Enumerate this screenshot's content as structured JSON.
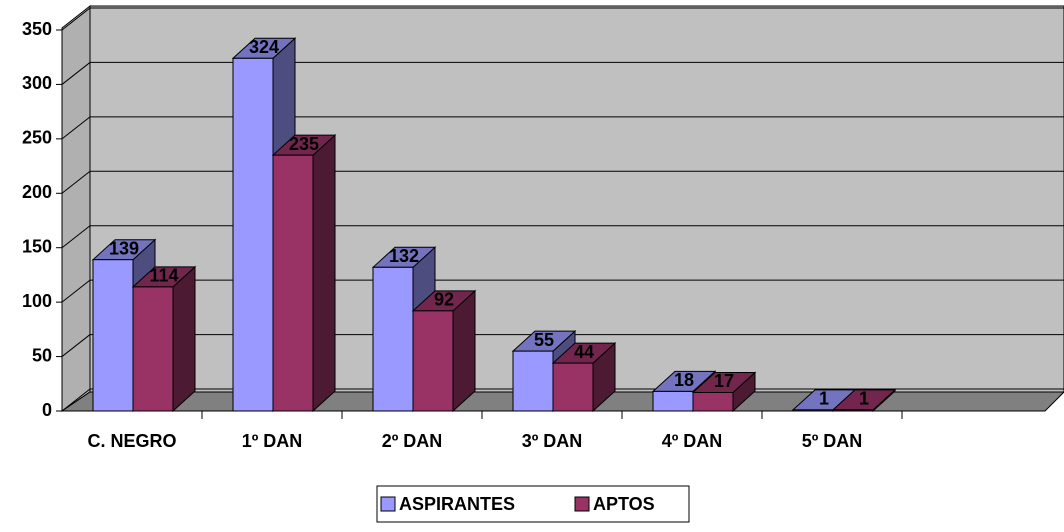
{
  "chart_data": {
    "type": "bar3d",
    "categories": [
      "C. NEGRO",
      "1º DAN",
      "2º DAN",
      "3º DAN",
      "4º DAN",
      "5º DAN"
    ],
    "series": [
      {
        "name": "ASPIRANTES",
        "color": "#9999ff",
        "values": [
          139,
          324,
          132,
          55,
          18,
          1
        ]
      },
      {
        "name": "APTOS",
        "color": "#993366",
        "values": [
          114,
          235,
          92,
          44,
          17,
          1
        ]
      }
    ],
    "ylim": [
      0,
      350
    ],
    "yticks": [
      0,
      50,
      100,
      150,
      200,
      250,
      300,
      350
    ],
    "grid": true,
    "legend": "bottom"
  }
}
